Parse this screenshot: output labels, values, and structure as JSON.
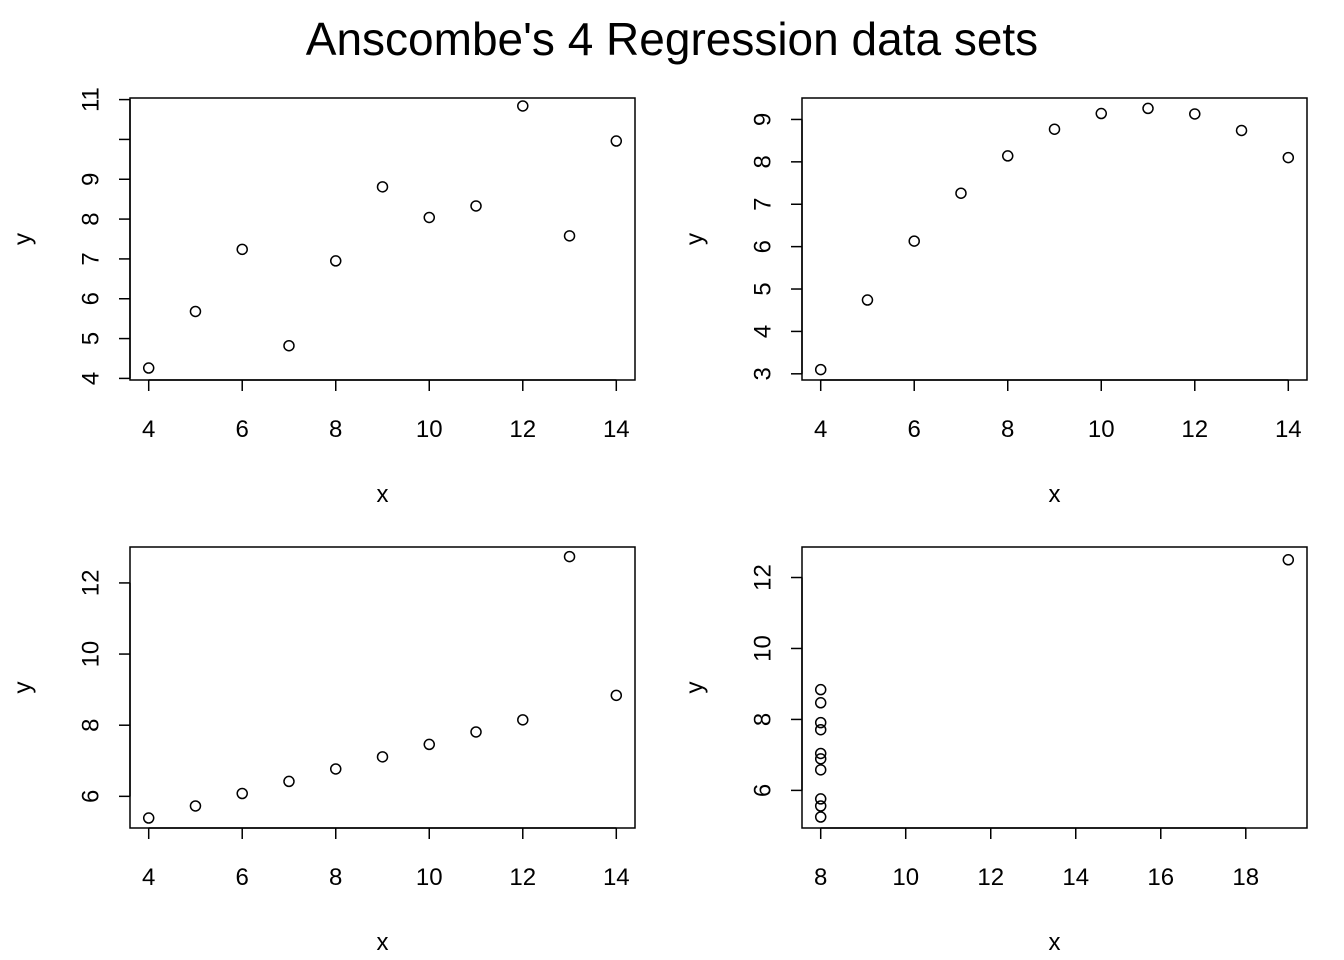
{
  "title": "Anscombe's 4 Regression data sets",
  "chart_data": [
    {
      "type": "scatter",
      "xlabel": "x",
      "ylabel": "y",
      "x_ticks": [
        4,
        6,
        8,
        10,
        12,
        14
      ],
      "y_ticks": [
        4,
        5,
        6,
        7,
        8,
        9,
        10,
        11
      ],
      "y_tick_labels": [
        "4",
        "5",
        "6",
        "7",
        "8",
        "9",
        "",
        "11"
      ],
      "xlim": [
        3.6,
        14.4
      ],
      "ylim": [
        3.96,
        11.04
      ],
      "x": [
        10,
        8,
        13,
        9,
        11,
        14,
        6,
        4,
        12,
        7,
        5
      ],
      "y": [
        8.04,
        6.95,
        7.58,
        8.81,
        8.33,
        9.96,
        7.24,
        4.26,
        10.84,
        4.82,
        5.68
      ]
    },
    {
      "type": "scatter",
      "xlabel": "x",
      "ylabel": "y",
      "x_ticks": [
        4,
        6,
        8,
        10,
        12,
        14
      ],
      "y_ticks": [
        3,
        4,
        5,
        6,
        7,
        8,
        9
      ],
      "y_tick_labels": [
        "3",
        "4",
        "5",
        "6",
        "7",
        "8",
        "9"
      ],
      "xlim": [
        3.6,
        14.4
      ],
      "ylim": [
        2.854,
        9.506
      ],
      "x": [
        10,
        8,
        13,
        9,
        11,
        14,
        6,
        4,
        12,
        7,
        5
      ],
      "y": [
        9.14,
        8.14,
        8.74,
        8.77,
        9.26,
        8.1,
        6.13,
        3.1,
        9.13,
        7.26,
        4.74
      ]
    },
    {
      "type": "scatter",
      "xlabel": "x",
      "ylabel": "y",
      "x_ticks": [
        4,
        6,
        8,
        10,
        12,
        14
      ],
      "y_ticks": [
        6,
        8,
        10,
        12
      ],
      "y_tick_labels": [
        "6",
        "8",
        "10",
        "12"
      ],
      "xlim": [
        3.6,
        14.4
      ],
      "ylim": [
        5.11,
        13.01
      ],
      "x": [
        10,
        8,
        13,
        9,
        11,
        14,
        6,
        4,
        12,
        7,
        5
      ],
      "y": [
        7.46,
        6.77,
        12.74,
        7.11,
        7.81,
        8.84,
        6.08,
        5.39,
        8.15,
        6.42,
        5.73
      ]
    },
    {
      "type": "scatter",
      "xlabel": "x",
      "ylabel": "y",
      "x_ticks": [
        8,
        10,
        12,
        14,
        16,
        18
      ],
      "y_ticks": [
        6,
        8,
        10,
        12
      ],
      "y_tick_labels": [
        "6",
        "8",
        "10",
        "12"
      ],
      "xlim": [
        7.56,
        19.44
      ],
      "ylim": [
        4.94,
        12.86
      ],
      "x": [
        8,
        8,
        8,
        8,
        8,
        8,
        8,
        19,
        8,
        8,
        8
      ],
      "y": [
        6.58,
        5.76,
        7.71,
        8.84,
        8.47,
        7.04,
        5.25,
        12.5,
        5.56,
        7.91,
        6.89
      ]
    }
  ]
}
